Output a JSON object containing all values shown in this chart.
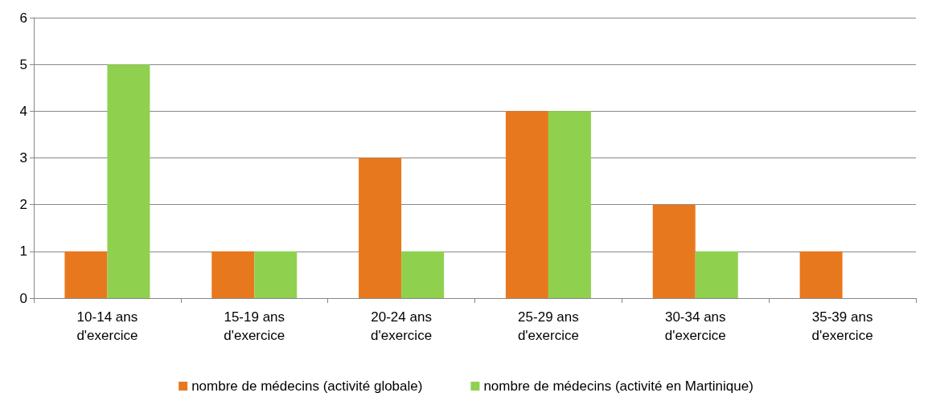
{
  "chart_data": {
    "type": "bar",
    "categories": [
      "10-14 ans\nd'exercice",
      "15-19 ans\nd'exercice",
      "20-24 ans\nd'exercice",
      "25-29 ans\nd'exercice",
      "30-34 ans\nd'exercice",
      "35-39 ans\nd'exercice"
    ],
    "series": [
      {
        "name": "nombre de médecins (activité globale)",
        "color": "#e8781e",
        "values": [
          1,
          1,
          3,
          4,
          2,
          1
        ]
      },
      {
        "name": "nombre de médecins (activité en Martinique)",
        "color": "#8fd14f",
        "values": [
          5,
          1,
          1,
          4,
          1,
          0
        ]
      }
    ],
    "ylim": [
      0,
      6
    ],
    "yticks": [
      0,
      1,
      2,
      3,
      4,
      5,
      6
    ],
    "grid": "y",
    "legend": "bottom"
  }
}
